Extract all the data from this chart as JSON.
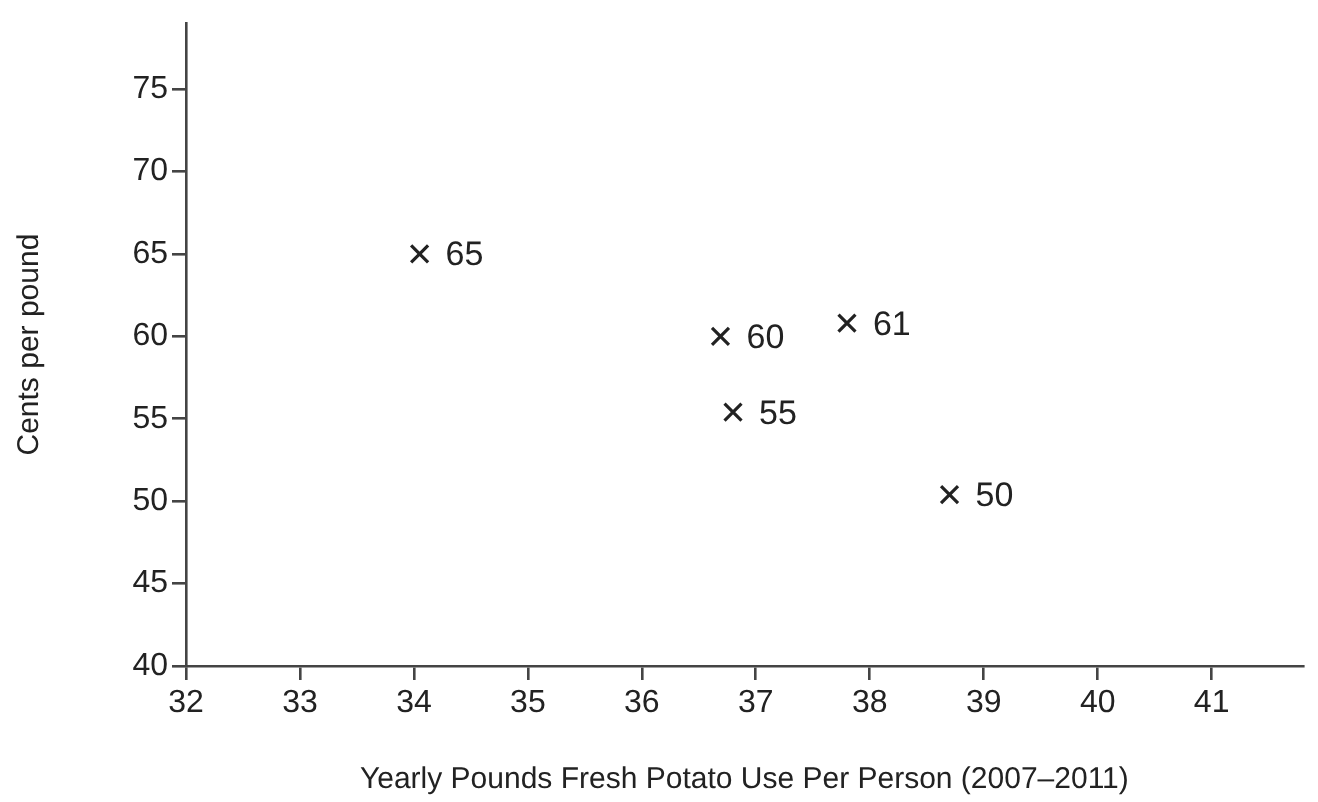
{
  "chart_data": {
    "type": "scatter",
    "xlabel": "Yearly Pounds Fresh Potato Use Per Person (2007–2011)",
    "ylabel": "Cents per pound",
    "x": [
      34.05,
      36.69,
      37.8,
      36.8,
      38.7
    ],
    "series": [
      {
        "color": "#222222",
        "values": [
          65,
          60,
          60.8,
          55.4,
          50.4
        ],
        "value_labels": [
          "65",
          "60",
          "61",
          "55",
          "50"
        ]
      }
    ],
    "xlim": [
      32,
      41.8
    ],
    "xticks": [
      32,
      33,
      34,
      35,
      36,
      37,
      38,
      39,
      40,
      41
    ],
    "ylim": [
      40,
      79
    ],
    "yticks": [
      40,
      45,
      50,
      55,
      60,
      65,
      70,
      75
    ],
    "marker": "cross",
    "legend": false
  }
}
